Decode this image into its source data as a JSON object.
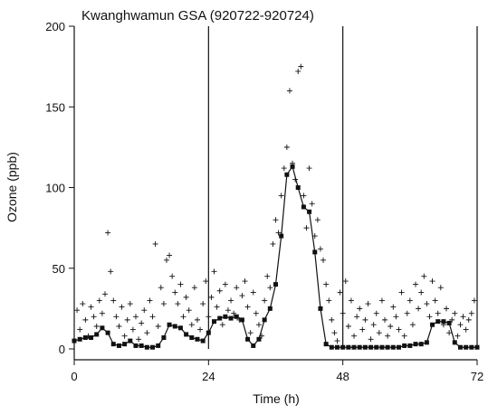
{
  "chart_data": {
    "type": "scatter",
    "title": "Kwanghwamun  GSA (920722-920724)",
    "xlabel": "Time (h)",
    "ylabel": "Ozone (ppb)",
    "xlim": [
      0,
      72
    ],
    "ylim": [
      0,
      200
    ],
    "xticks": [
      0,
      24,
      48,
      72
    ],
    "yticks": [
      0,
      50,
      100,
      150,
      200
    ],
    "grid": "vertical lines at 24, 48, 72",
    "colors": {
      "marks": "#111111",
      "line": "#111111",
      "axis": "#111111"
    },
    "series": [
      {
        "marker": "filled-square-connected",
        "x": [
          0,
          1,
          2,
          3,
          4,
          5,
          6,
          7,
          8,
          9,
          10,
          11,
          12,
          13,
          14,
          15,
          16,
          17,
          18,
          19,
          20,
          21,
          22,
          23,
          24,
          25,
          26,
          27,
          28,
          29,
          30,
          31,
          32,
          33,
          34,
          35,
          36,
          37,
          38,
          39,
          40,
          41,
          42,
          43,
          44,
          45,
          46,
          47,
          48,
          49,
          50,
          51,
          52,
          53,
          54,
          55,
          56,
          57,
          58,
          59,
          60,
          61,
          62,
          63,
          64,
          65,
          66,
          67,
          68,
          69,
          70,
          71,
          72
        ],
        "y": [
          5,
          6,
          7,
          7,
          9,
          13,
          10,
          3,
          2,
          3,
          5,
          2,
          2,
          1,
          1,
          2,
          7,
          15,
          14,
          13,
          9,
          7,
          6,
          5,
          10,
          17,
          19,
          20,
          19,
          20,
          18,
          6,
          2,
          6,
          18,
          25,
          40,
          70,
          108,
          113,
          100,
          88,
          85,
          60,
          25,
          3,
          1,
          1,
          1,
          1,
          1,
          1,
          1,
          1,
          1,
          1,
          1,
          1,
          1,
          2,
          2,
          3,
          3,
          4,
          15,
          17,
          17,
          16,
          4,
          1,
          1,
          1,
          1
        ]
      },
      {
        "marker": "plus",
        "points": [
          [
            0.5,
            24
          ],
          [
            1,
            12
          ],
          [
            1.5,
            28
          ],
          [
            2,
            18
          ],
          [
            2.5,
            8
          ],
          [
            3,
            26
          ],
          [
            3.5,
            20
          ],
          [
            4,
            14
          ],
          [
            4.5,
            30
          ],
          [
            5,
            22
          ],
          [
            5.5,
            34
          ],
          [
            6,
            72
          ],
          [
            6.5,
            48
          ],
          [
            7,
            30
          ],
          [
            7.5,
            20
          ],
          [
            8,
            14
          ],
          [
            8.5,
            26
          ],
          [
            9,
            8
          ],
          [
            9.5,
            18
          ],
          [
            10,
            28
          ],
          [
            10.5,
            12
          ],
          [
            11,
            20
          ],
          [
            11.5,
            6
          ],
          [
            12,
            16
          ],
          [
            12.5,
            24
          ],
          [
            13,
            10
          ],
          [
            13.5,
            30
          ],
          [
            14,
            20
          ],
          [
            14.5,
            65
          ],
          [
            15,
            14
          ],
          [
            15.5,
            38
          ],
          [
            16,
            28
          ],
          [
            16.5,
            55
          ],
          [
            17,
            58
          ],
          [
            17.5,
            45
          ],
          [
            18,
            35
          ],
          [
            18.5,
            28
          ],
          [
            19,
            40
          ],
          [
            19.5,
            20
          ],
          [
            20,
            32
          ],
          [
            20.5,
            24
          ],
          [
            21,
            15
          ],
          [
            21.5,
            38
          ],
          [
            22,
            18
          ],
          [
            22.5,
            12
          ],
          [
            23,
            28
          ],
          [
            23.5,
            42
          ],
          [
            24,
            20
          ],
          [
            24.5,
            32
          ],
          [
            25,
            48
          ],
          [
            25.5,
            26
          ],
          [
            26,
            36
          ],
          [
            26.5,
            15
          ],
          [
            27,
            40
          ],
          [
            27.5,
            24
          ],
          [
            28,
            30
          ],
          [
            28.5,
            22
          ],
          [
            29,
            38
          ],
          [
            29.5,
            18
          ],
          [
            30,
            33
          ],
          [
            30.5,
            42
          ],
          [
            31,
            26
          ],
          [
            31.5,
            10
          ],
          [
            32,
            35
          ],
          [
            32.5,
            22
          ],
          [
            33,
            15
          ],
          [
            33.5,
            8
          ],
          [
            34,
            30
          ],
          [
            34.5,
            45
          ],
          [
            35,
            38
          ],
          [
            35.5,
            65
          ],
          [
            36,
            80
          ],
          [
            36.5,
            72
          ],
          [
            37,
            95
          ],
          [
            37.5,
            112
          ],
          [
            38,
            125
          ],
          [
            38.5,
            160
          ],
          [
            39,
            115
          ],
          [
            39.5,
            105
          ],
          [
            40,
            172
          ],
          [
            40.5,
            175
          ],
          [
            41,
            95
          ],
          [
            41.5,
            75
          ],
          [
            42,
            112
          ],
          [
            42.5,
            90
          ],
          [
            43,
            70
          ],
          [
            43.5,
            80
          ],
          [
            44,
            62
          ],
          [
            44.5,
            55
          ],
          [
            45,
            40
          ],
          [
            45.5,
            30
          ],
          [
            46,
            18
          ],
          [
            46.5,
            10
          ],
          [
            47,
            5
          ],
          [
            47.5,
            35
          ],
          [
            48,
            22
          ],
          [
            48.5,
            42
          ],
          [
            49,
            14
          ],
          [
            49.5,
            30
          ],
          [
            50,
            8
          ],
          [
            50.5,
            20
          ],
          [
            51,
            25
          ],
          [
            51.5,
            12
          ],
          [
            52,
            18
          ],
          [
            52.5,
            28
          ],
          [
            53,
            6
          ],
          [
            53.5,
            15
          ],
          [
            54,
            22
          ],
          [
            54.5,
            10
          ],
          [
            55,
            30
          ],
          [
            55.5,
            18
          ],
          [
            56,
            8
          ],
          [
            56.5,
            14
          ],
          [
            57,
            26
          ],
          [
            57.5,
            20
          ],
          [
            58,
            12
          ],
          [
            58.5,
            35
          ],
          [
            59,
            8
          ],
          [
            59.5,
            22
          ],
          [
            60,
            30
          ],
          [
            60.5,
            15
          ],
          [
            61,
            40
          ],
          [
            61.5,
            25
          ],
          [
            62,
            35
          ],
          [
            62.5,
            45
          ],
          [
            63,
            28
          ],
          [
            63.5,
            20
          ],
          [
            64,
            42
          ],
          [
            64.5,
            30
          ],
          [
            65,
            22
          ],
          [
            65.5,
            38
          ],
          [
            66,
            15
          ],
          [
            66.5,
            25
          ],
          [
            67,
            10
          ],
          [
            67.5,
            18
          ],
          [
            68,
            22
          ],
          [
            68.5,
            8
          ],
          [
            69,
            15
          ],
          [
            69.5,
            20
          ],
          [
            70,
            12
          ],
          [
            70.5,
            18
          ],
          [
            71,
            22
          ],
          [
            71.5,
            30
          ]
        ]
      }
    ]
  }
}
